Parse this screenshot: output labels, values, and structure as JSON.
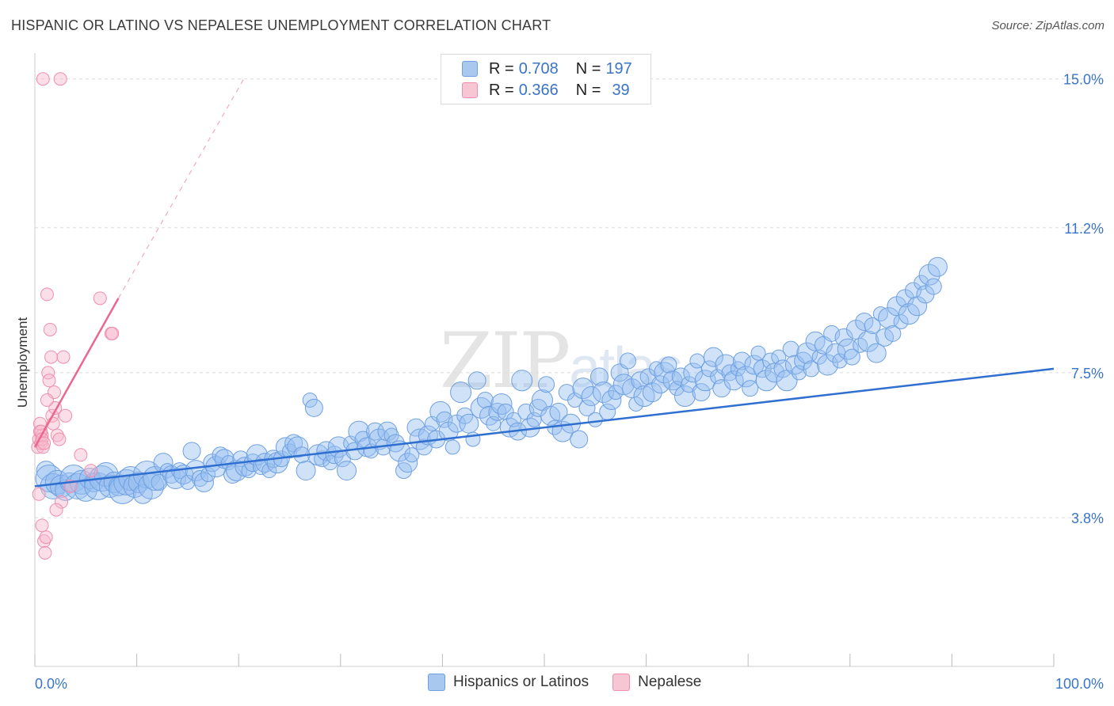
{
  "header": {
    "title": "HISPANIC OR LATINO VS NEPALESE UNEMPLOYMENT CORRELATION CHART",
    "source": "Source: ZipAtlas.com"
  },
  "watermark": {
    "zip": "ZIP",
    "atlas": "atlas"
  },
  "legend": {
    "rows": [
      {
        "r_label": "R =",
        "r_value": "0.708",
        "n_label": "N =",
        "n_value": "197",
        "color": "#a8c8f0"
      },
      {
        "r_label": "R =",
        "r_value": "0.366",
        "n_label": "N =",
        "n_value": "39",
        "color": "#f7b8cb"
      }
    ]
  },
  "bottom_legend": {
    "items": [
      {
        "label": "Hispanics or Latinos",
        "color": "#a8c8f0"
      },
      {
        "label": "Nepalese",
        "color": "#f7b8cb"
      }
    ]
  },
  "chart_data": {
    "type": "scatter",
    "title": "HISPANIC OR LATINO VS NEPALESE UNEMPLOYMENT CORRELATION CHART",
    "xlabel": "",
    "ylabel": "Unemployment",
    "xlim": [
      0,
      100
    ],
    "ylim": [
      0,
      15.5
    ],
    "x_tick_labels": [
      "0.0%",
      "100.0%"
    ],
    "y_ticks": [
      3.8,
      7.5,
      11.2,
      15.0
    ],
    "y_tick_labels": [
      "3.8%",
      "7.5%",
      "11.2%",
      "15.0%"
    ],
    "grid": true,
    "colors": {
      "blue": "#6fa0e2",
      "blue_line": "#2f6fd0",
      "pink": "#ef8eac",
      "pink_line": "#e8688f"
    },
    "series": [
      {
        "name": "Hispanics or Latinos",
        "R": 0.708,
        "N": 197,
        "trend": {
          "x": [
            0,
            100
          ],
          "y": [
            4.6,
            7.6
          ]
        },
        "points": [
          [
            1.1,
            5.0
          ],
          [
            1.4,
            4.8
          ],
          [
            1.8,
            4.6
          ],
          [
            2.2,
            4.7
          ],
          [
            2.6,
            4.6
          ],
          [
            3.0,
            4.5
          ],
          [
            3.4,
            4.7
          ],
          [
            3.8,
            4.8
          ],
          [
            4.2,
            4.6
          ],
          [
            4.6,
            4.7
          ],
          [
            5.0,
            4.5
          ],
          [
            5.4,
            4.8
          ],
          [
            5.8,
            4.7
          ],
          [
            6.2,
            4.6
          ],
          [
            6.6,
            4.8
          ],
          [
            7.0,
            4.9
          ],
          [
            7.4,
            4.6
          ],
          [
            7.8,
            4.7
          ],
          [
            8.2,
            4.6
          ],
          [
            8.6,
            4.5
          ],
          [
            9.0,
            4.7
          ],
          [
            9.4,
            4.8
          ],
          [
            9.8,
            4.6
          ],
          [
            10.2,
            4.7
          ],
          [
            10.6,
            4.4
          ],
          [
            11.0,
            4.9
          ],
          [
            11.4,
            4.6
          ],
          [
            11.8,
            4.8
          ],
          [
            12.2,
            4.7
          ],
          [
            12.6,
            5.2
          ],
          [
            13.0,
            5.0
          ],
          [
            13.4,
            4.9
          ],
          [
            13.8,
            4.8
          ],
          [
            14.2,
            5.0
          ],
          [
            14.6,
            4.9
          ],
          [
            15.0,
            4.7
          ],
          [
            15.4,
            5.5
          ],
          [
            15.8,
            5.0
          ],
          [
            16.2,
            4.8
          ],
          [
            16.6,
            4.7
          ],
          [
            17.0,
            4.9
          ],
          [
            17.4,
            5.2
          ],
          [
            17.8,
            5.1
          ],
          [
            18.2,
            5.4
          ],
          [
            18.6,
            5.3
          ],
          [
            19.0,
            5.2
          ],
          [
            19.4,
            4.9
          ],
          [
            19.8,
            5.0
          ],
          [
            20.2,
            5.3
          ],
          [
            20.6,
            5.1
          ],
          [
            21.0,
            5.0
          ],
          [
            21.4,
            5.2
          ],
          [
            21.8,
            5.4
          ],
          [
            22.2,
            5.1
          ],
          [
            22.6,
            5.2
          ],
          [
            23.0,
            5.0
          ],
          [
            23.4,
            5.3
          ],
          [
            23.8,
            5.2
          ],
          [
            24.2,
            5.3
          ],
          [
            24.6,
            5.6
          ],
          [
            25.0,
            5.5
          ],
          [
            25.4,
            5.7
          ],
          [
            25.8,
            5.6
          ],
          [
            26.2,
            5.4
          ],
          [
            26.6,
            5.0
          ],
          [
            27.0,
            6.8
          ],
          [
            27.4,
            6.6
          ],
          [
            27.8,
            5.4
          ],
          [
            28.2,
            5.3
          ],
          [
            28.6,
            5.5
          ],
          [
            29.0,
            5.2
          ],
          [
            29.4,
            5.4
          ],
          [
            29.8,
            5.6
          ],
          [
            30.2,
            5.3
          ],
          [
            30.6,
            5.0
          ],
          [
            31.0,
            5.7
          ],
          [
            31.4,
            5.5
          ],
          [
            31.8,
            6.0
          ],
          [
            32.2,
            5.8
          ],
          [
            32.6,
            5.6
          ],
          [
            33.0,
            5.5
          ],
          [
            33.4,
            6.0
          ],
          [
            33.8,
            5.8
          ],
          [
            34.2,
            5.6
          ],
          [
            34.6,
            6.0
          ],
          [
            35.0,
            5.9
          ],
          [
            35.4,
            5.7
          ],
          [
            35.8,
            5.5
          ],
          [
            36.2,
            5.0
          ],
          [
            36.6,
            5.2
          ],
          [
            37.0,
            5.4
          ],
          [
            37.4,
            6.1
          ],
          [
            37.8,
            5.8
          ],
          [
            38.2,
            5.6
          ],
          [
            38.6,
            5.9
          ],
          [
            39.0,
            6.2
          ],
          [
            39.4,
            5.8
          ],
          [
            39.8,
            6.5
          ],
          [
            40.2,
            6.3
          ],
          [
            40.6,
            6.0
          ],
          [
            41.0,
            5.6
          ],
          [
            41.4,
            6.2
          ],
          [
            41.8,
            7.0
          ],
          [
            42.2,
            6.4
          ],
          [
            42.6,
            6.2
          ],
          [
            43.0,
            5.8
          ],
          [
            43.4,
            7.3
          ],
          [
            43.8,
            6.6
          ],
          [
            44.2,
            6.8
          ],
          [
            44.6,
            6.4
          ],
          [
            45.0,
            6.2
          ],
          [
            45.4,
            6.5
          ],
          [
            45.8,
            6.7
          ],
          [
            46.2,
            6.5
          ],
          [
            46.6,
            6.1
          ],
          [
            47.0,
            6.3
          ],
          [
            47.4,
            6.0
          ],
          [
            47.8,
            7.3
          ],
          [
            48.2,
            6.5
          ],
          [
            48.6,
            6.1
          ],
          [
            49.0,
            6.3
          ],
          [
            49.4,
            6.6
          ],
          [
            49.8,
            6.8
          ],
          [
            50.2,
            7.2
          ],
          [
            50.6,
            6.4
          ],
          [
            51.0,
            6.1
          ],
          [
            51.4,
            6.5
          ],
          [
            51.8,
            6.0
          ],
          [
            52.2,
            7.0
          ],
          [
            52.6,
            6.2
          ],
          [
            53.0,
            6.8
          ],
          [
            53.4,
            5.8
          ],
          [
            53.8,
            7.1
          ],
          [
            54.2,
            6.6
          ],
          [
            54.6,
            6.9
          ],
          [
            55.0,
            6.3
          ],
          [
            55.4,
            7.4
          ],
          [
            55.8,
            7.0
          ],
          [
            56.2,
            6.5
          ],
          [
            56.6,
            6.8
          ],
          [
            57.0,
            7.0
          ],
          [
            57.4,
            7.5
          ],
          [
            57.8,
            7.2
          ],
          [
            58.2,
            7.8
          ],
          [
            58.6,
            7.1
          ],
          [
            59.0,
            6.7
          ],
          [
            59.4,
            7.3
          ],
          [
            59.8,
            6.9
          ],
          [
            60.2,
            7.4
          ],
          [
            60.6,
            7.0
          ],
          [
            61.0,
            7.6
          ],
          [
            61.4,
            7.2
          ],
          [
            61.8,
            7.5
          ],
          [
            62.2,
            7.7
          ],
          [
            62.6,
            7.3
          ],
          [
            63.0,
            7.1
          ],
          [
            63.4,
            7.4
          ],
          [
            63.8,
            6.9
          ],
          [
            64.2,
            7.2
          ],
          [
            64.6,
            7.5
          ],
          [
            65.0,
            7.8
          ],
          [
            65.4,
            7.0
          ],
          [
            65.8,
            7.3
          ],
          [
            66.2,
            7.6
          ],
          [
            66.6,
            7.9
          ],
          [
            67.0,
            7.4
          ],
          [
            67.4,
            7.1
          ],
          [
            67.8,
            7.7
          ],
          [
            68.2,
            7.5
          ],
          [
            68.6,
            7.3
          ],
          [
            69.0,
            7.6
          ],
          [
            69.4,
            7.8
          ],
          [
            69.8,
            7.4
          ],
          [
            70.2,
            7.1
          ],
          [
            70.6,
            7.7
          ],
          [
            71.0,
            8.0
          ],
          [
            71.4,
            7.6
          ],
          [
            71.8,
            7.3
          ],
          [
            72.2,
            7.8
          ],
          [
            72.6,
            7.5
          ],
          [
            73.0,
            7.9
          ],
          [
            73.4,
            7.6
          ],
          [
            73.8,
            7.3
          ],
          [
            74.2,
            8.1
          ],
          [
            74.6,
            7.7
          ],
          [
            75.0,
            7.5
          ],
          [
            75.4,
            7.8
          ],
          [
            75.8,
            8.0
          ],
          [
            76.2,
            7.6
          ],
          [
            76.6,
            8.3
          ],
          [
            77.0,
            7.9
          ],
          [
            77.4,
            8.2
          ],
          [
            77.8,
            7.7
          ],
          [
            78.2,
            8.5
          ],
          [
            78.6,
            8.0
          ],
          [
            79.0,
            7.8
          ],
          [
            79.4,
            8.4
          ],
          [
            79.8,
            8.1
          ],
          [
            80.2,
            7.9
          ],
          [
            80.6,
            8.6
          ],
          [
            81.0,
            8.2
          ],
          [
            81.4,
            8.8
          ],
          [
            81.8,
            8.3
          ],
          [
            82.2,
            8.7
          ],
          [
            82.6,
            8.0
          ],
          [
            83.0,
            9.0
          ],
          [
            83.4,
            8.4
          ],
          [
            83.8,
            8.9
          ],
          [
            84.2,
            8.5
          ],
          [
            84.6,
            9.2
          ],
          [
            85.0,
            8.8
          ],
          [
            85.4,
            9.4
          ],
          [
            85.8,
            9.0
          ],
          [
            86.2,
            9.6
          ],
          [
            86.6,
            9.2
          ],
          [
            87.0,
            9.8
          ],
          [
            87.4,
            9.5
          ],
          [
            87.8,
            10.0
          ],
          [
            88.2,
            9.7
          ],
          [
            88.6,
            10.2
          ]
        ]
      },
      {
        "name": "Nepalese",
        "R": 0.366,
        "N": 39,
        "trend": {
          "x": [
            0,
            8.2
          ],
          "y": [
            5.6,
            9.4
          ]
        },
        "trend_extension": {
          "x": [
            8.2,
            20.5
          ],
          "y": [
            9.4,
            15.0
          ]
        },
        "points": [
          [
            0.3,
            5.6
          ],
          [
            0.4,
            5.8
          ],
          [
            0.5,
            6.0
          ],
          [
            0.6,
            5.7
          ],
          [
            0.7,
            5.9
          ],
          [
            0.5,
            6.2
          ],
          [
            0.6,
            6.0
          ],
          [
            0.7,
            5.8
          ],
          [
            0.8,
            5.6
          ],
          [
            0.9,
            5.7
          ],
          [
            0.4,
            4.4
          ],
          [
            0.7,
            3.6
          ],
          [
            0.9,
            3.2
          ],
          [
            1.0,
            2.9
          ],
          [
            1.2,
            9.5
          ],
          [
            1.3,
            7.5
          ],
          [
            1.4,
            7.3
          ],
          [
            1.5,
            8.6
          ],
          [
            1.6,
            7.9
          ],
          [
            1.7,
            6.4
          ],
          [
            1.8,
            6.2
          ],
          [
            1.9,
            7.0
          ],
          [
            2.0,
            6.6
          ],
          [
            2.2,
            5.9
          ],
          [
            2.4,
            5.8
          ],
          [
            2.6,
            4.2
          ],
          [
            2.8,
            7.9
          ],
          [
            3.0,
            6.4
          ],
          [
            3.5,
            4.6
          ],
          [
            4.5,
            5.4
          ],
          [
            5.5,
            5.0
          ],
          [
            6.4,
            9.4
          ],
          [
            7.5,
            8.5
          ],
          [
            7.6,
            8.5
          ],
          [
            2.1,
            4.0
          ],
          [
            1.1,
            3.3
          ],
          [
            0.8,
            15.0
          ],
          [
            2.5,
            15.0
          ],
          [
            1.2,
            6.8
          ]
        ]
      }
    ]
  }
}
